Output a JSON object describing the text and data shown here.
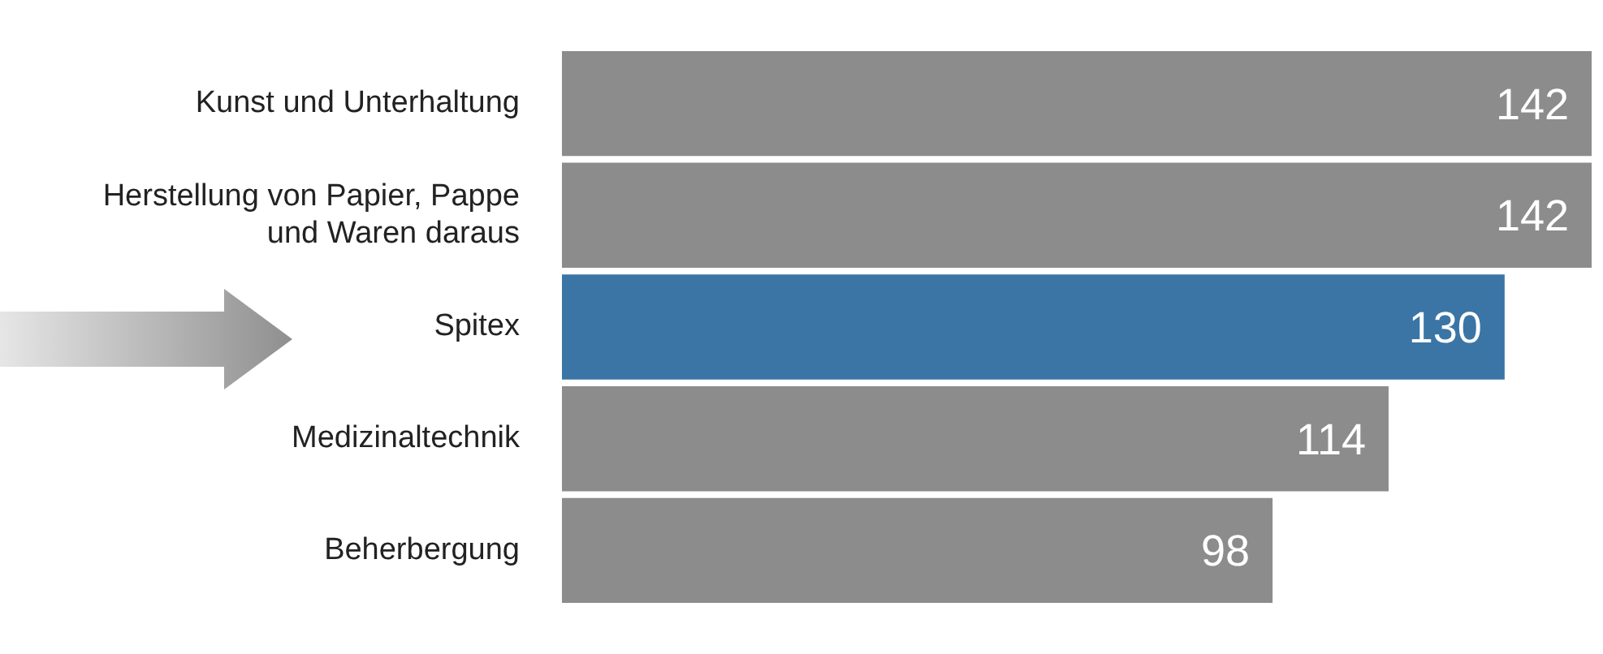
{
  "chart_data": {
    "type": "bar",
    "orientation": "horizontal",
    "categories": [
      "Kunst und Unterhaltung",
      "Herstellung von Papier, Pappe und Waren daraus",
      "Spitex",
      "Medizinaltechnik",
      "Beherbergung"
    ],
    "values": [
      142,
      142,
      130,
      114,
      98
    ],
    "colors": [
      "#8c8c8c",
      "#8c8c8c",
      "#3a75a5",
      "#8c8c8c",
      "#8c8c8c"
    ],
    "xlim": [
      0,
      142
    ],
    "data_labels": true,
    "legend": false
  }
}
